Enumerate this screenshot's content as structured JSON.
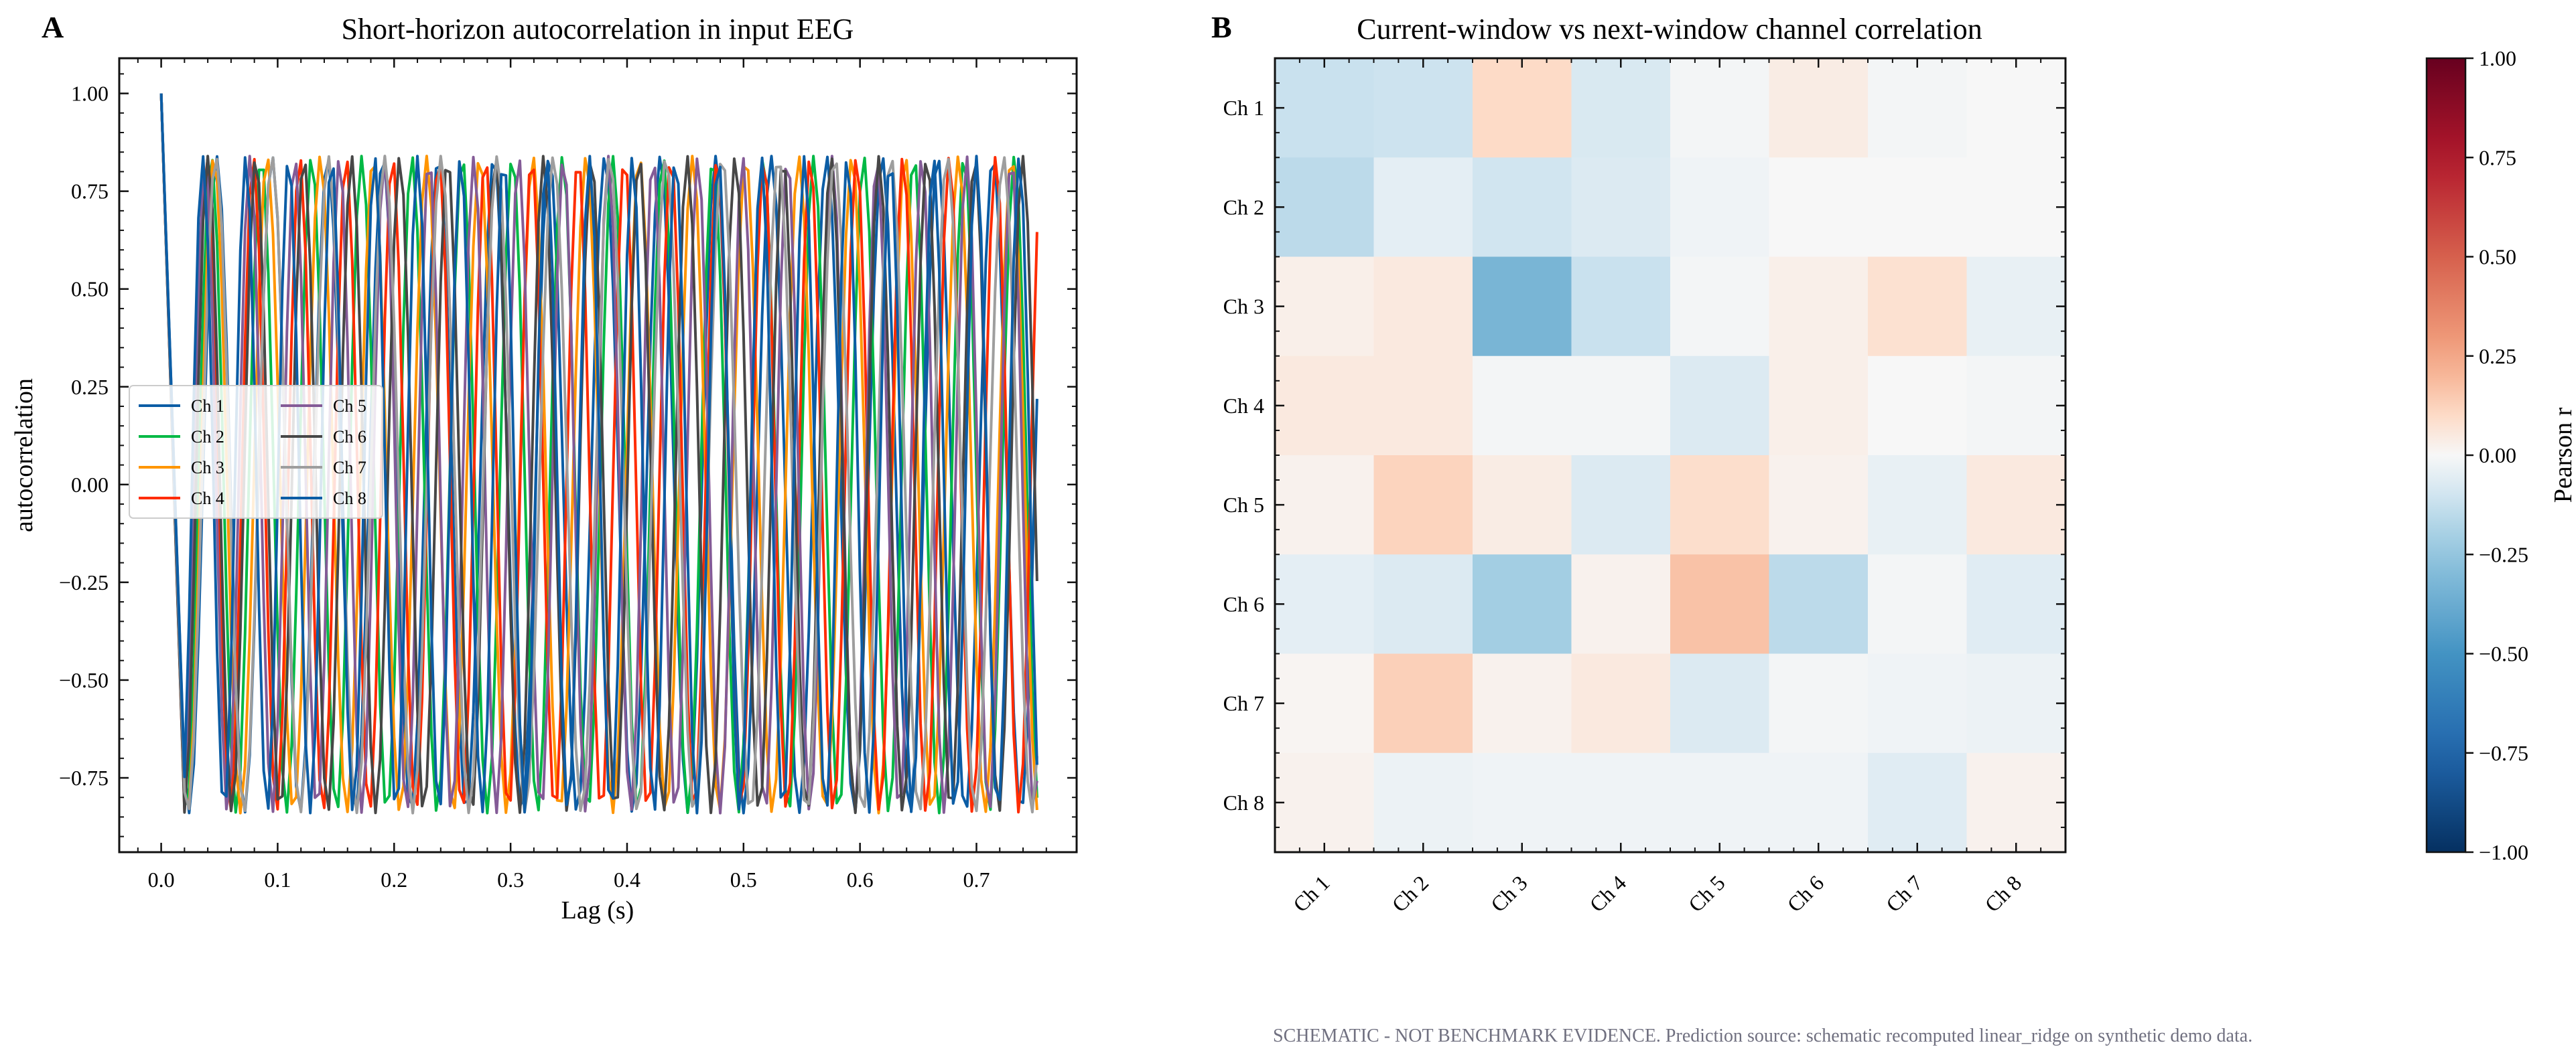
{
  "footnote": "SCHEMATIC - NOT BENCHMARK EVIDENCE. Prediction source: schematic recomputed linear_ridge on synthetic demo data.",
  "chart_data": [
    {
      "panel": "A",
      "type": "line",
      "title": "Short-horizon autocorrelation in input EEG",
      "xlabel": "Lag (s)",
      "ylabel": "autocorrelation",
      "xlim": [
        -0.036,
        0.786
      ],
      "ylim": [
        -0.94,
        1.09
      ],
      "xticks": [
        "0.0",
        "0.1",
        "0.2",
        "0.3",
        "0.4",
        "0.5",
        "0.6",
        "0.7"
      ],
      "yticks": [
        "1.00",
        "0.75",
        "0.50",
        "0.25",
        "0.00",
        "−0.25",
        "−0.50",
        "−0.75"
      ],
      "legend_position": "center-left",
      "legend_columns": 2,
      "lag_step_s": 0.004,
      "lag_max_s": 0.752,
      "oscillation_hz": [
        21.0,
        23.2,
        21.9,
        25.1,
        26.0,
        24.3,
        20.7,
        27.1
      ],
      "amplitude": 0.84,
      "series": [
        {
          "name": "Ch 1",
          "color": "#0C5DA5"
        },
        {
          "name": "Ch 2",
          "color": "#00B945"
        },
        {
          "name": "Ch 3",
          "color": "#FF9500"
        },
        {
          "name": "Ch 4",
          "color": "#FF2C00"
        },
        {
          "name": "Ch 5",
          "color": "#845B97"
        },
        {
          "name": "Ch 6",
          "color": "#474747"
        },
        {
          "name": "Ch 7",
          "color": "#9E9E9E"
        },
        {
          "name": "Ch 8",
          "color": "#0C5DA5"
        }
      ]
    },
    {
      "panel": "B",
      "type": "heatmap",
      "title": "Current-window vs next-window channel correlation",
      "rows": [
        "Ch 1",
        "Ch 2",
        "Ch 3",
        "Ch 4",
        "Ch 5",
        "Ch 6",
        "Ch 7",
        "Ch 8"
      ],
      "cols": [
        "Ch 1",
        "Ch 2",
        "Ch 3",
        "Ch 4",
        "Ch 5",
        "Ch 6",
        "Ch 7",
        "Ch 8"
      ],
      "values": [
        [
          -0.12,
          -0.11,
          0.1,
          -0.08,
          -0.01,
          0.04,
          -0.01,
          0.0
        ],
        [
          -0.15,
          -0.05,
          -0.1,
          -0.07,
          -0.02,
          0.0,
          0.0,
          0.0
        ],
        [
          0.03,
          0.05,
          -0.33,
          -0.12,
          -0.01,
          0.03,
          0.08,
          -0.04
        ],
        [
          0.05,
          0.05,
          -0.01,
          -0.01,
          -0.07,
          0.03,
          0.0,
          -0.01
        ],
        [
          0.02,
          0.12,
          0.04,
          -0.07,
          0.09,
          0.02,
          -0.04,
          0.05
        ],
        [
          -0.05,
          -0.07,
          -0.21,
          0.02,
          0.17,
          -0.15,
          -0.01,
          -0.06
        ],
        [
          0.01,
          0.13,
          0.02,
          0.05,
          -0.07,
          -0.01,
          -0.02,
          -0.03
        ],
        [
          0.02,
          -0.03,
          -0.02,
          -0.02,
          -0.02,
          -0.02,
          -0.06,
          0.02
        ]
      ],
      "colorbar": {
        "label": "Pearson r",
        "colormap": "RdBu_r",
        "range": [
          -1.0,
          1.0
        ],
        "ticks": [
          "1.00",
          "0.75",
          "0.50",
          "0.25",
          "0.00",
          "−0.25",
          "−0.50",
          "−0.75",
          "−1.00"
        ]
      }
    }
  ]
}
